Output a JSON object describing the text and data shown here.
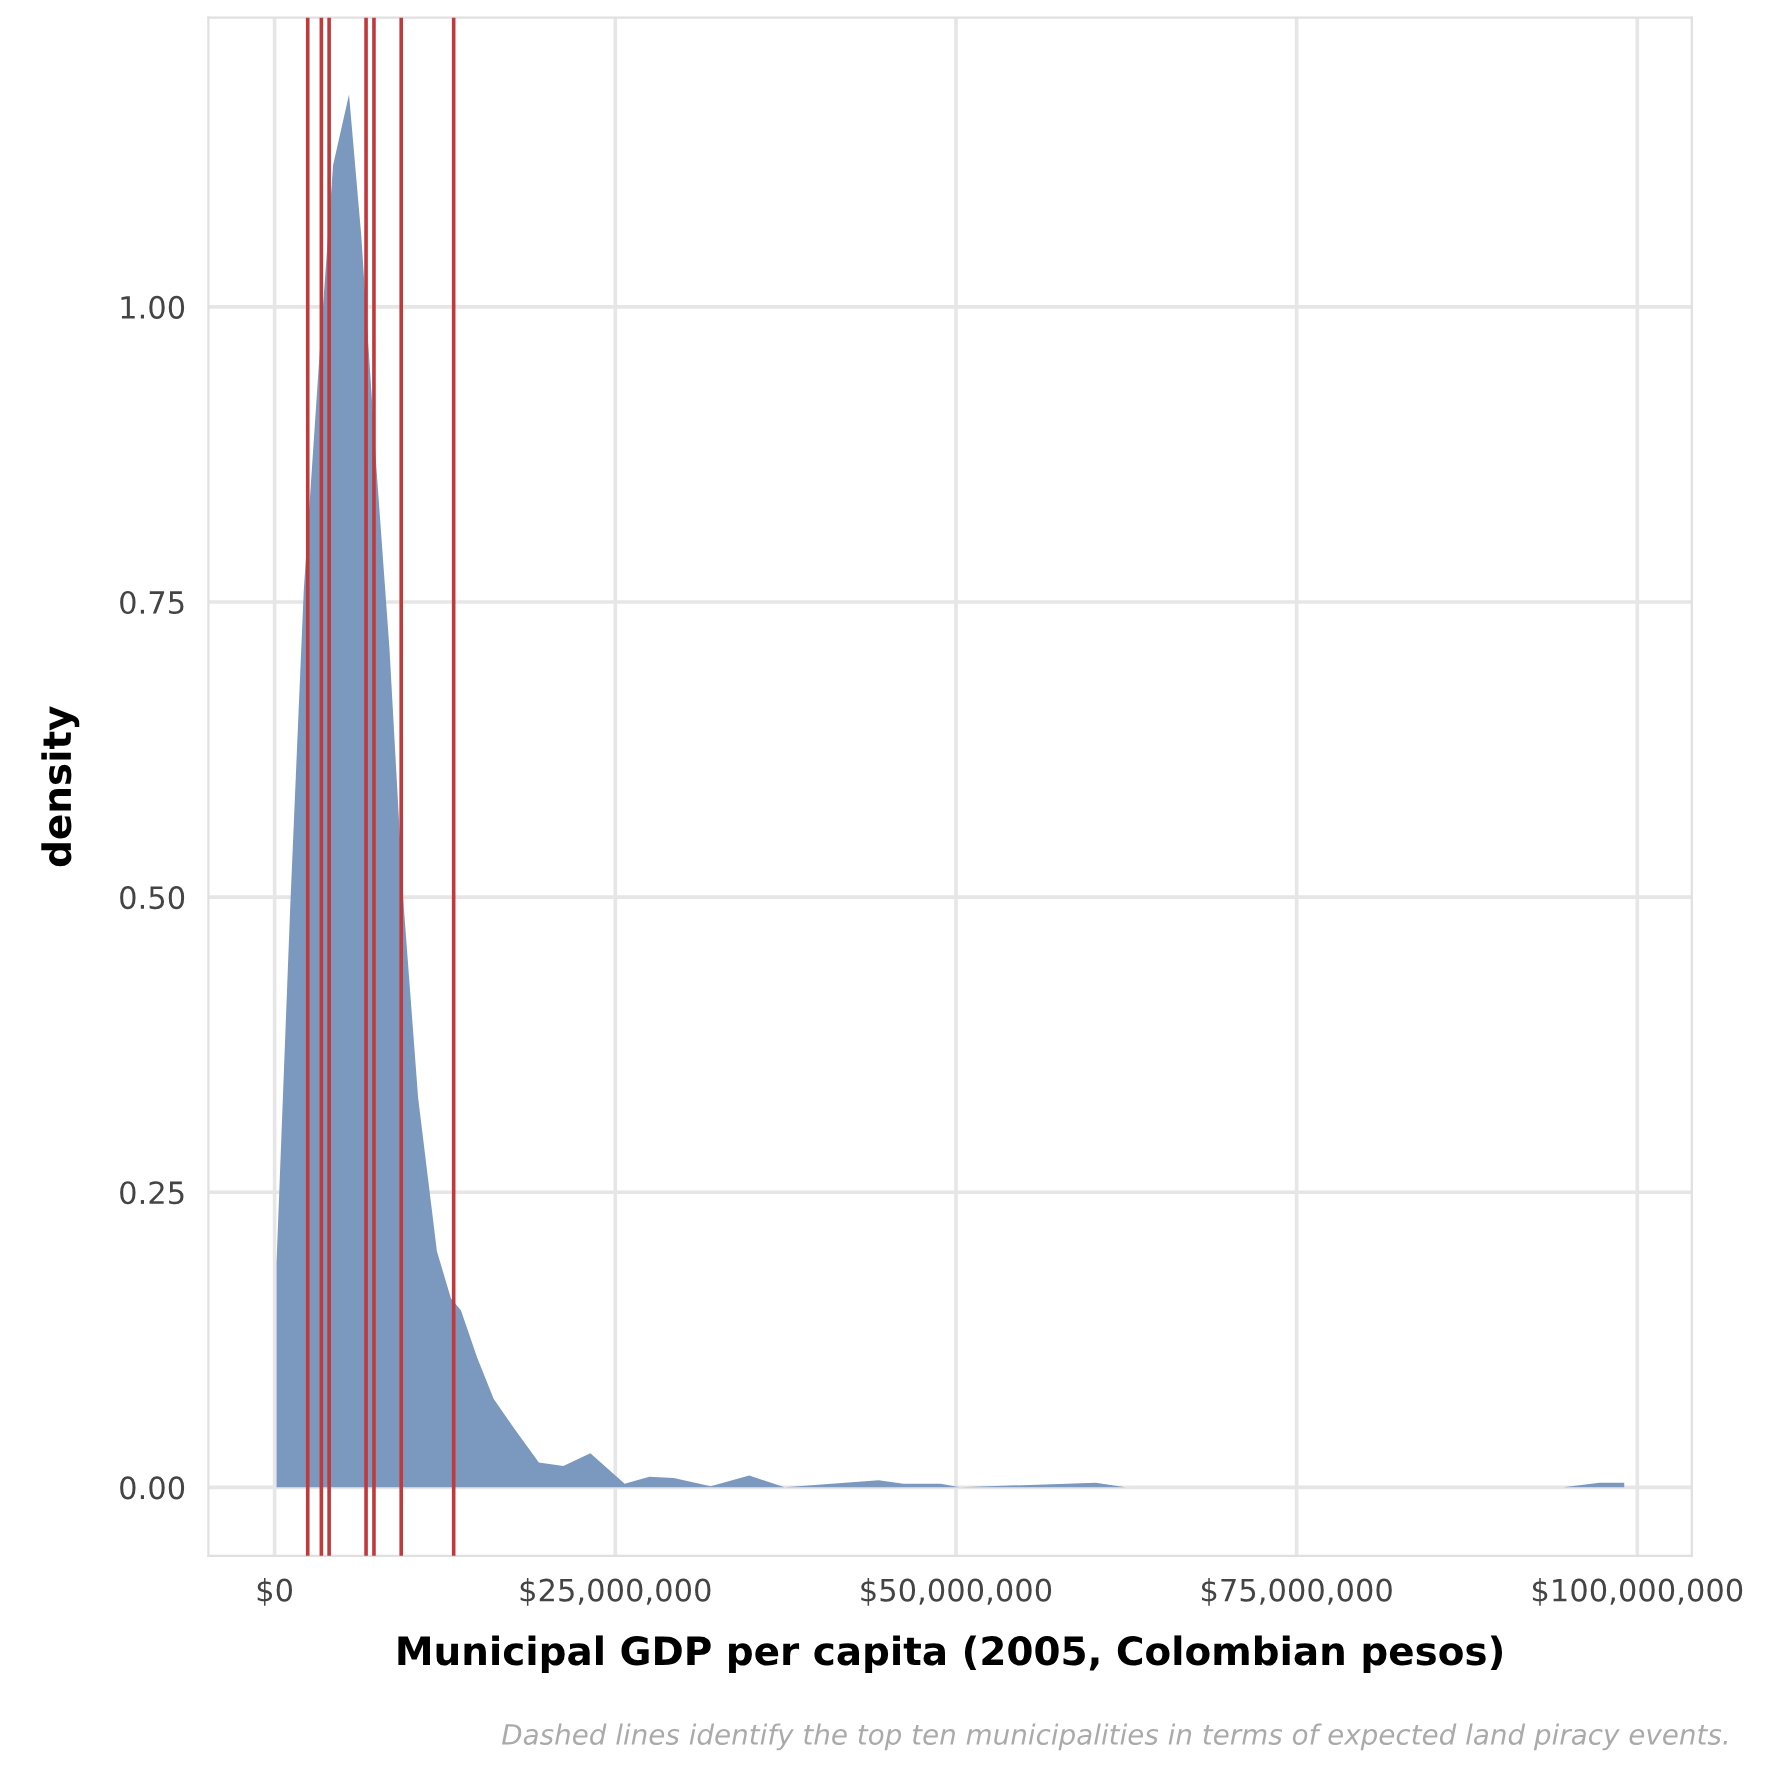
{
  "chart_data": {
    "type": "area",
    "xlabel": "Municipal GDP per capita (2005, Colombian pesos)",
    "ylabel": "density",
    "annotations": [
      "Dashed lines identify the top ten municipalities in terms of expected land piracy events."
    ],
    "series": [
      {
        "color": "#7b98bf",
        "x": [
          140000,
          1140000,
          2140000,
          3240000,
          4290000,
          5460000,
          6360000,
          7430000,
          8430000,
          9490000,
          10530000,
          11910000,
          12940000,
          13670000,
          14860000,
          16070000,
          17570000,
          19390000,
          21190000,
          23170000,
          25690000,
          27500000,
          29290000,
          32000000,
          34830000,
          37430000,
          44330000,
          46140000,
          48860000,
          50290000,
          60260000,
          62430000,
          94570000,
          97240000,
          99040000
        ],
        "values": [
          0.19,
          0.49,
          0.76,
          0.95,
          1.12,
          1.18,
          1.06,
          0.87,
          0.71,
          0.49,
          0.33,
          0.2,
          0.16,
          0.15,
          0.11,
          0.075,
          0.05,
          0.021,
          0.018,
          0.029,
          0.003,
          0.009,
          0.008,
          0.001,
          0.01,
          0.0,
          0.006,
          0.003,
          0.003,
          0.0,
          0.004,
          0.0,
          0.0,
          0.004,
          0.004
        ]
      }
    ],
    "ref_lines": [
      {
        "axis": "x",
        "value": 2430000,
        "color": "#c0393b",
        "line_style": "solid"
      },
      {
        "axis": "x",
        "value": 3430000,
        "color": "#c0393b",
        "line_style": "solid"
      },
      {
        "axis": "x",
        "value": 4000000,
        "color": "#c0393b",
        "line_style": "solid"
      },
      {
        "axis": "x",
        "value": 6710000,
        "color": "#c0393b",
        "line_style": "solid"
      },
      {
        "axis": "x",
        "value": 7290000,
        "color": "#c0393b",
        "line_style": "solid"
      },
      {
        "axis": "x",
        "value": 9290000,
        "color": "#c0393b",
        "line_style": "solid"
      },
      {
        "axis": "x",
        "value": 13140000,
        "color": "#c0393b",
        "line_style": "solid"
      }
    ],
    "xlim": [
      -4860000,
      104000000
    ],
    "xticks": [
      {
        "value": 0,
        "label": "$0"
      },
      {
        "value": 25000000,
        "label": "$25,000,000"
      },
      {
        "value": 50000000,
        "label": "$50,000,000"
      },
      {
        "value": 75000000,
        "label": "$75,000,000"
      },
      {
        "value": 100000000,
        "label": "$100,000,000"
      }
    ],
    "ylim": [
      -0.058,
      1.245
    ],
    "yticks": [
      {
        "value": 0,
        "label": "0.00"
      },
      {
        "value": 0.25,
        "label": "0.25"
      },
      {
        "value": 0.5,
        "label": "0.50"
      },
      {
        "value": 0.75,
        "label": "0.75"
      },
      {
        "value": 1.0,
        "label": "1.00"
      }
    ],
    "grid": true,
    "legend": false
  }
}
